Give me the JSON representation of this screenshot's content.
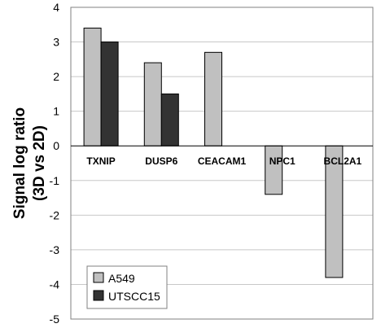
{
  "chart_data": {
    "type": "bar",
    "title": "",
    "xlabel": "",
    "ylabel": [
      "Signal log ratio",
      "(3D vs 2D)"
    ],
    "ylim": [
      -5,
      4
    ],
    "yticks": [
      4,
      3,
      2,
      1,
      0,
      -1,
      -2,
      -3,
      -4,
      -5
    ],
    "grid": true,
    "legend_position": "bottom-left",
    "categories": [
      "TXNIP",
      "DUSP6",
      "CEACAM1",
      "NPC1",
      "BCL2A1"
    ],
    "series": [
      {
        "name": "A549",
        "color": "#c0c0c0",
        "values": [
          3.4,
          2.4,
          2.7,
          -1.4,
          -3.8
        ]
      },
      {
        "name": "UTSCC15",
        "color": "#333333",
        "values": [
          3.0,
          1.5,
          null,
          null,
          null
        ]
      }
    ]
  }
}
